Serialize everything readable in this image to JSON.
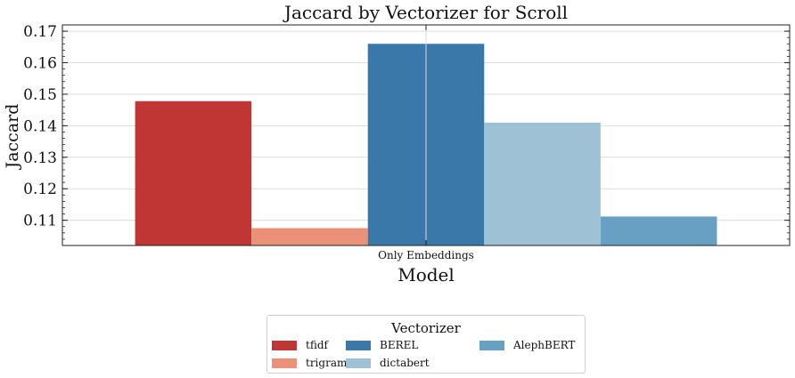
{
  "chart_data": {
    "type": "bar",
    "title": "Jaccard by Vectorizer for Scroll",
    "xlabel": "Model",
    "ylabel": "Jaccard",
    "categories": [
      "Only Embeddings"
    ],
    "ylim": [
      0.102,
      0.172
    ],
    "yticks": [
      "0.11",
      "0.12",
      "0.13",
      "0.14",
      "0.15",
      "0.16",
      "0.17"
    ],
    "grid": true,
    "legend_title": "Vectorizer",
    "legend_position": "below",
    "series": [
      {
        "name": "tfidf",
        "values": [
          0.1478
        ],
        "color": "#c03634"
      },
      {
        "name": "trigram",
        "values": [
          0.1075
        ],
        "color": "#ea9177"
      },
      {
        "name": "BEREL",
        "values": [
          0.166
        ],
        "color": "#3b78aa"
      },
      {
        "name": "dictabert",
        "values": [
          0.141
        ],
        "color": "#9fc1d6"
      },
      {
        "name": "AlephBERT",
        "values": [
          0.1112
        ],
        "color": "#68a0c3"
      }
    ]
  }
}
